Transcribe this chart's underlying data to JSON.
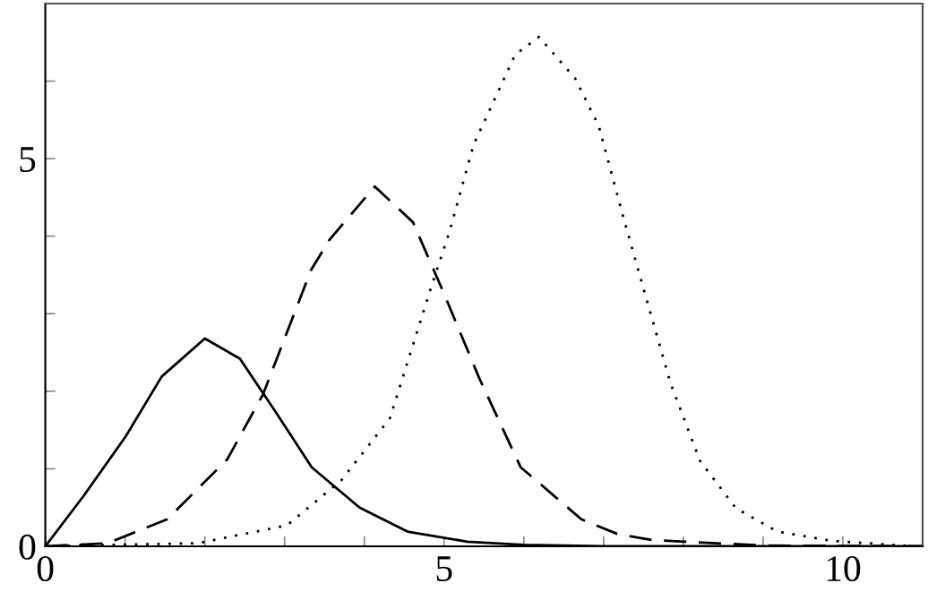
{
  "chart_data": {
    "type": "line",
    "xlim": [
      0,
      11
    ],
    "ylim": [
      0,
      7
    ],
    "xticks": [
      0,
      {
        "value": 1,
        "label": null
      },
      {
        "value": 2,
        "label": null
      },
      {
        "value": 3,
        "label": null
      },
      {
        "value": 4,
        "label": null
      },
      5,
      {
        "value": 6,
        "label": null
      },
      {
        "value": 7,
        "label": null
      },
      {
        "value": 8,
        "label": null
      },
      {
        "value": 9,
        "label": null
      },
      10
    ],
    "yticks": [
      0,
      {
        "value": 1,
        "label": null
      },
      {
        "value": 2,
        "label": null
      },
      {
        "value": 3,
        "label": null
      },
      {
        "value": 4,
        "label": null
      },
      5,
      {
        "value": 6,
        "label": null
      }
    ],
    "grid": false,
    "marker": "none",
    "series": [
      {
        "color": "#000000",
        "line_style": "solid",
        "x": [
          0,
          0.48,
          1.01,
          1.46,
          2.0,
          2.44,
          2.89,
          3.34,
          3.94,
          4.54,
          5.29,
          6.0,
          7.0,
          11.0
        ],
        "values": [
          0,
          0.65,
          1.42,
          2.19,
          2.68,
          2.42,
          1.73,
          1.02,
          0.5,
          0.19,
          0.06,
          0.02,
          0,
          0
        ]
      },
      {
        "color": "#000000",
        "line_style": "dashed",
        "x": [
          0,
          0.78,
          1.53,
          2.28,
          2.73,
          3.33,
          3.56,
          4.13,
          4.61,
          4.99,
          5.44,
          5.96,
          6.72,
          7.17,
          7.62,
          9.0,
          11.0
        ],
        "values": [
          0,
          0.04,
          0.35,
          1.12,
          1.96,
          3.56,
          3.95,
          4.64,
          4.18,
          3.28,
          2.17,
          1.02,
          0.35,
          0.16,
          0.08,
          0.01,
          0
        ]
      },
      {
        "color": "#000000",
        "line_style": "dotted",
        "x": [
          0,
          1.91,
          3.03,
          3.71,
          4.32,
          4.84,
          5.06,
          5.37,
          5.51,
          5.89,
          6.19,
          6.64,
          6.94,
          7.24,
          7.54,
          7.84,
          8.21,
          8.66,
          9.18,
          9.86,
          10.9
        ],
        "values": [
          0,
          0.04,
          0.27,
          0.85,
          1.65,
          3.35,
          4.03,
          5.18,
          5.49,
          6.34,
          6.57,
          6.04,
          5.42,
          4.27,
          3.18,
          2.1,
          1.1,
          0.49,
          0.19,
          0.07,
          0
        ]
      }
    ]
  }
}
